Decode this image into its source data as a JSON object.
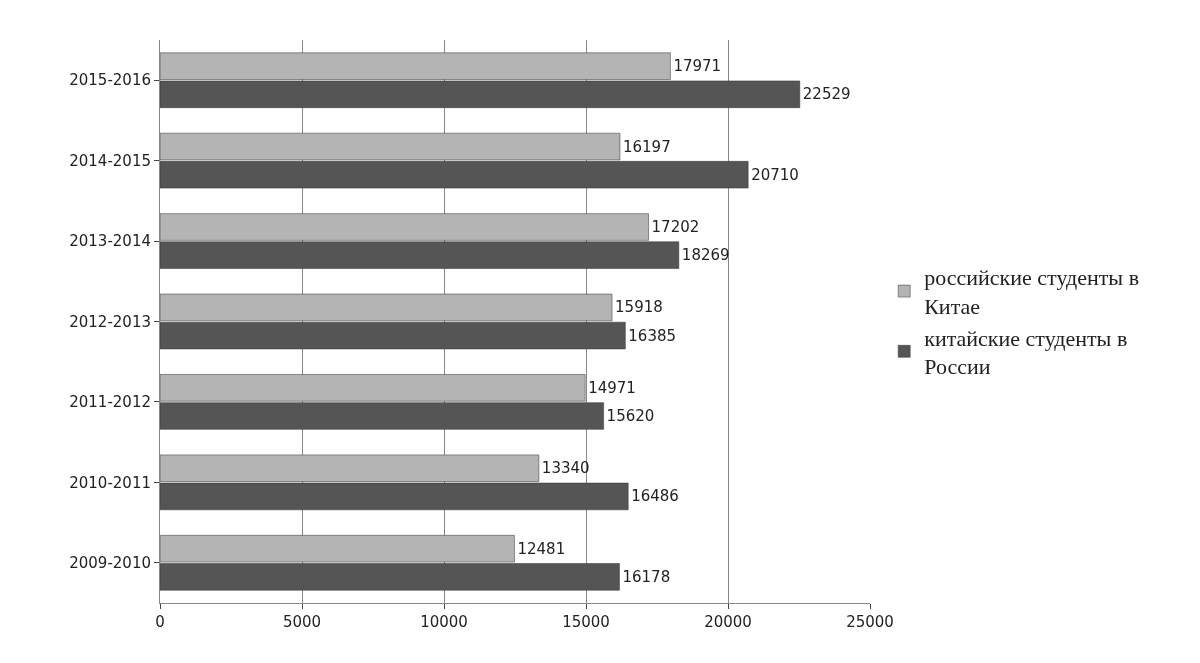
{
  "chart_data": {
    "type": "bar",
    "orientation": "horizontal",
    "categories": [
      "2015-2016",
      "2014-2015",
      "2013-2014",
      "2012-2013",
      "2011-2012",
      "2010-2011",
      "2009-2010"
    ],
    "series": [
      {
        "name": "российские студенты в Китае",
        "color": "#b4b4b4",
        "values": [
          17971,
          16197,
          17202,
          15918,
          14971,
          13340,
          12481
        ]
      },
      {
        "name": "китайские студенты в России",
        "color": "#555555",
        "values": [
          22529,
          20710,
          18269,
          16385,
          15620,
          16486,
          16178
        ]
      }
    ],
    "xlim": [
      0,
      25000
    ],
    "xticks": [
      0,
      5000,
      10000,
      15000,
      20000,
      25000
    ],
    "grid": "x",
    "legend": "right",
    "data_labels": true
  }
}
